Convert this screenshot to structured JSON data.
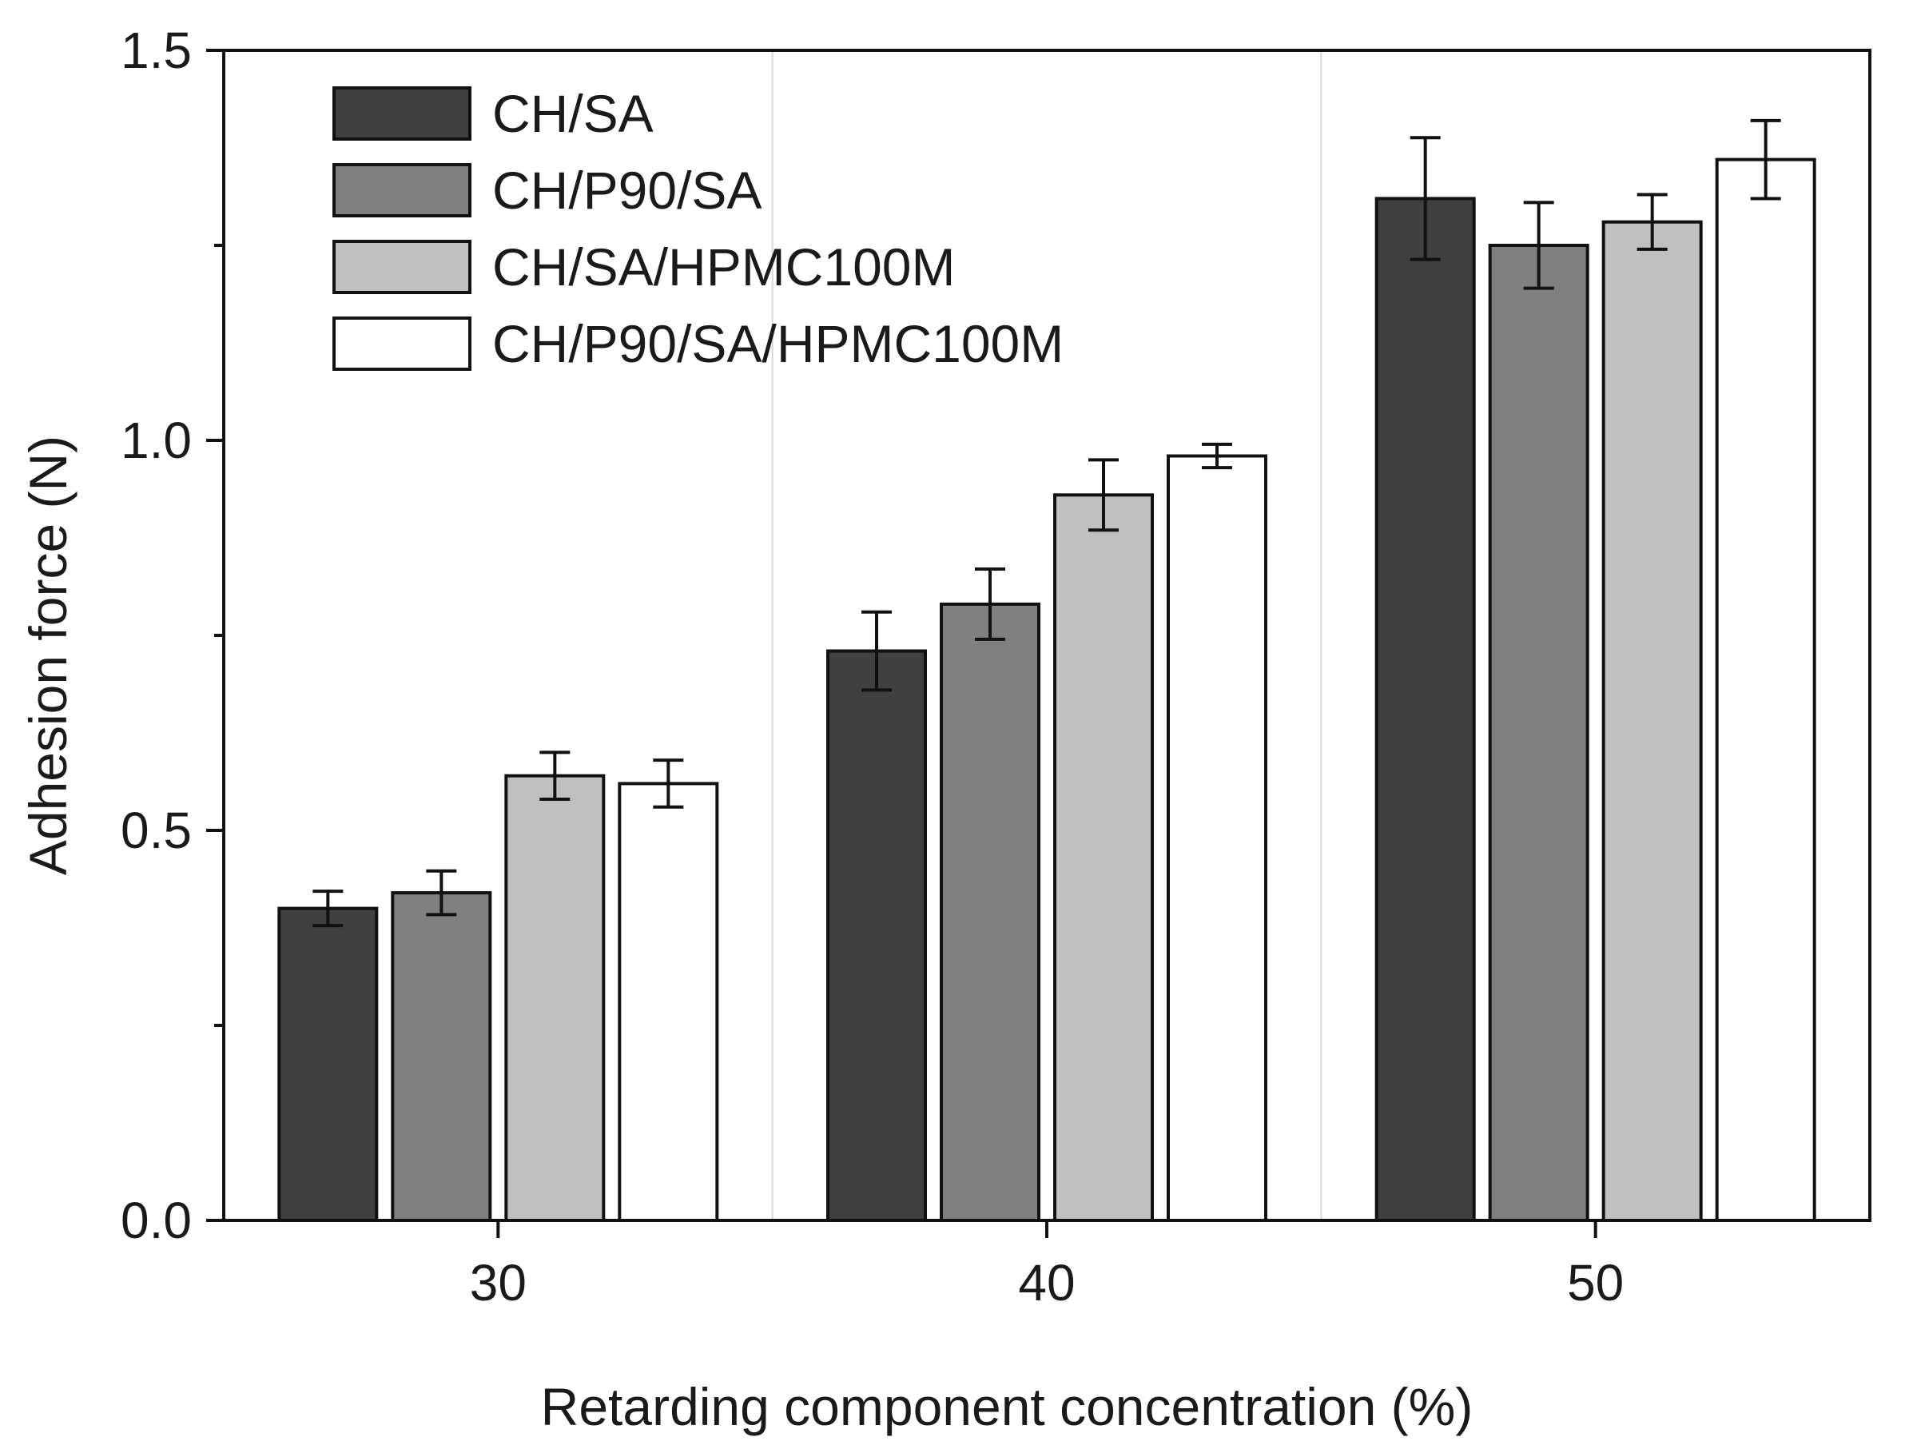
{
  "chart_data": {
    "type": "bar",
    "title": "",
    "xlabel": "Retarding component concentration (%)",
    "ylabel": "Adhesion force (N)",
    "ylim": [
      0,
      1.5
    ],
    "yticks": [
      0.0,
      0.5,
      1.0,
      1.5
    ],
    "ytick_labels": [
      "0.0",
      "0.5",
      "1.0",
      "1.5"
    ],
    "categories": [
      "30",
      "40",
      "50"
    ],
    "legend_position": "top-left",
    "error_bars": true,
    "series": [
      {
        "name": "CH/SA",
        "color": "#404040",
        "values": [
          0.4,
          0.73,
          1.31
        ],
        "errors": [
          0.022,
          0.05,
          0.078
        ]
      },
      {
        "name": "CH/P90/SA",
        "color": "#808080",
        "values": [
          0.42,
          0.79,
          1.25
        ],
        "errors": [
          0.028,
          0.045,
          0.055
        ]
      },
      {
        "name": "CH/SA/HPMC100M",
        "color": "#c0c0c0",
        "values": [
          0.57,
          0.93,
          1.28
        ],
        "errors": [
          0.03,
          0.045,
          0.035
        ]
      },
      {
        "name": "CH/P90/SA/HPMC100M",
        "color": "#ffffff",
        "values": [
          0.56,
          0.98,
          1.36
        ],
        "errors": [
          0.03,
          0.015,
          0.05
        ]
      }
    ]
  }
}
